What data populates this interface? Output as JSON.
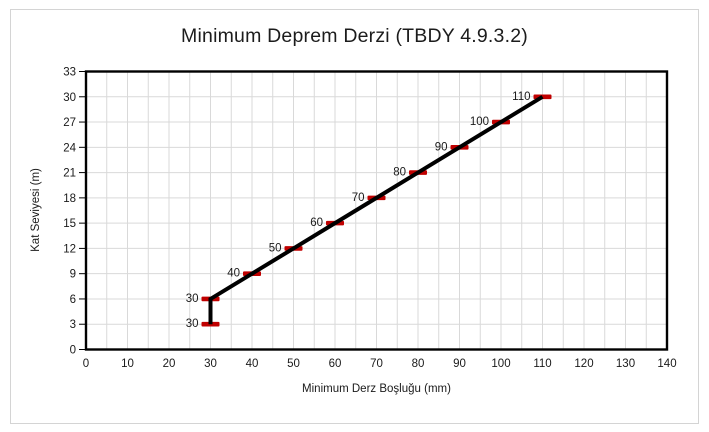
{
  "page": {
    "background": "#ffffff",
    "chart_border_color": "#d4d4d4"
  },
  "chart_data": {
    "type": "line",
    "title": "Minimum Deprem Derzi (TBDY 4.9.3.2)",
    "xlabel": "Minimum Derz Boşluğu (mm)",
    "ylabel": "Kat Seviyesi (m)",
    "xlim": [
      0,
      140
    ],
    "ylim": [
      0,
      33
    ],
    "x_ticks": [
      0,
      10,
      20,
      30,
      40,
      50,
      60,
      70,
      80,
      90,
      100,
      110,
      120,
      130,
      140
    ],
    "y_ticks": [
      0,
      3,
      6,
      9,
      12,
      15,
      18,
      21,
      24,
      27,
      30,
      33
    ],
    "x_minor_grid_step": 5,
    "y_grid_step": 3,
    "grid": true,
    "legend": false,
    "gridline_color": "#d9d9d9",
    "frame_color": "#000000",
    "tick_label_color": "#1a1a1a",
    "series": [
      {
        "name": "Minimum Derz Boşluğu",
        "x": [
          30,
          30,
          40,
          50,
          60,
          70,
          80,
          90,
          100,
          110
        ],
        "y": [
          3,
          6,
          9,
          12,
          15,
          18,
          21,
          24,
          27,
          30
        ],
        "point_labels": [
          "30",
          "30",
          "40",
          "50",
          "60",
          "70",
          "80",
          "90",
          "100",
          "110"
        ],
        "line_color": "#000000",
        "marker_color": "#c00000",
        "marker_shape": "dash"
      }
    ]
  }
}
